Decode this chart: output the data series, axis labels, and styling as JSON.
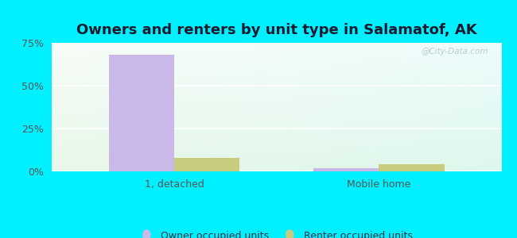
{
  "title": "Owners and renters by unit type in Salamatof, AK",
  "categories": [
    "1, detached",
    "Mobile home"
  ],
  "owner_values": [
    68.0,
    2.0
  ],
  "renter_values": [
    8.0,
    4.0
  ],
  "owner_color": "#c9b8e8",
  "renter_color": "#c8cc7e",
  "ylim": [
    0,
    75
  ],
  "yticks": [
    0,
    25,
    50,
    75
  ],
  "ytick_labels": [
    "0%",
    "25%",
    "50%",
    "75%"
  ],
  "background_outer": "#00f0ff",
  "watermark": "@City-Data.com",
  "legend_owner": "Owner occupied units",
  "legend_renter": "Renter occupied units",
  "bar_width": 0.32,
  "title_fontsize": 13,
  "tick_fontsize": 9,
  "legend_fontsize": 9
}
